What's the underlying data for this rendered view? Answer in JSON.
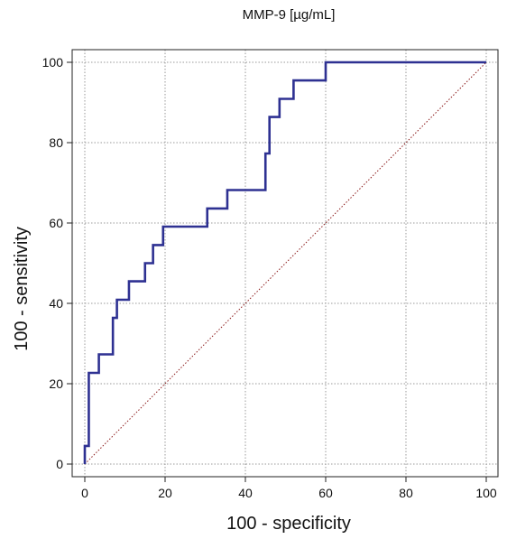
{
  "chart_data": {
    "type": "line",
    "title": "MMP-9  [µg/mL]",
    "xlabel": "100 - specificity",
    "ylabel": "100 - sensitivity",
    "xlim": [
      0,
      100
    ],
    "ylim": [
      0,
      100
    ],
    "x_ticks": [
      0,
      20,
      40,
      60,
      80,
      100
    ],
    "y_ticks": [
      0,
      20,
      40,
      60,
      80,
      100
    ],
    "grid": true,
    "colors": {
      "roc": "#2e3192",
      "reference": "#8b1a1a",
      "grid": "#9a9a9a"
    },
    "series": [
      {
        "type": "step",
        "points": [
          [
            0,
            0
          ],
          [
            0,
            4.5
          ],
          [
            1,
            4.5
          ],
          [
            1,
            22.7
          ],
          [
            3.5,
            22.7
          ],
          [
            3.5,
            27.3
          ],
          [
            7,
            27.3
          ],
          [
            7,
            36.4
          ],
          [
            8,
            36.4
          ],
          [
            8,
            40.9
          ],
          [
            11,
            40.9
          ],
          [
            11,
            45.5
          ],
          [
            15,
            45.5
          ],
          [
            15,
            50
          ],
          [
            17,
            50
          ],
          [
            17,
            54.5
          ],
          [
            19.5,
            54.5
          ],
          [
            19.5,
            59.1
          ],
          [
            30.5,
            59.1
          ],
          [
            30.5,
            63.6
          ],
          [
            35.5,
            63.6
          ],
          [
            35.5,
            68.2
          ],
          [
            45,
            68.2
          ],
          [
            45,
            77.3
          ],
          [
            46,
            77.3
          ],
          [
            46,
            86.4
          ],
          [
            48.5,
            86.4
          ],
          [
            48.5,
            90.9
          ],
          [
            52,
            90.9
          ],
          [
            52,
            95.5
          ],
          [
            60,
            95.5
          ],
          [
            60,
            100
          ],
          [
            100,
            100
          ]
        ]
      },
      {
        "type": "reference",
        "style": "dotted",
        "points": [
          [
            0,
            0
          ],
          [
            100,
            100
          ]
        ]
      }
    ]
  }
}
